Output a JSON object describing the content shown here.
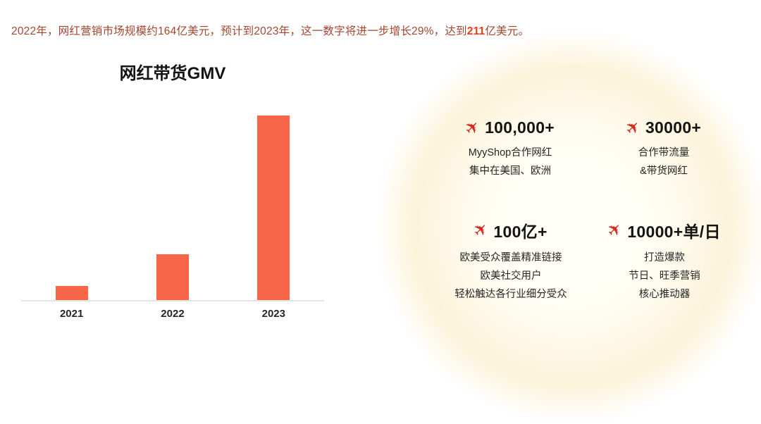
{
  "headline": {
    "prefix": "2022年，网红营销市场规模约164亿美元，预计到2023年，这一数字将进一步增长29%，达到",
    "highlight": "211",
    "suffix": "亿美元。"
  },
  "chart": {
    "title": "网红带货GMV",
    "chart_data": {
      "type": "bar",
      "title": "网红带货GMV",
      "categories": [
        "2021",
        "2022",
        "2023"
      ],
      "values": [
        20,
        65,
        262
      ],
      "xlabel": "",
      "ylabel": "",
      "ylim": [
        0,
        268
      ],
      "grid": false,
      "legend": false,
      "bar_color": "#F8664A"
    }
  },
  "stats": [
    {
      "icon": "airplane-icon",
      "value": "100,000+",
      "lines": [
        "MyyShop合作网红",
        "集中在美国、欧洲"
      ]
    },
    {
      "icon": "airplane-icon",
      "value": "30000+",
      "lines": [
        "合作带流量",
        "&带货网红"
      ]
    },
    {
      "icon": "airplane-icon",
      "value": "100亿+",
      "lines": [
        "欧美受众覆盖精准链接",
        "欧美社交用户",
        "轻松触达各行业细分受众"
      ]
    },
    {
      "icon": "airplane-icon",
      "value": "10000+单/日",
      "lines": [
        "打造爆款",
        "节日、旺季营销",
        "核心推动器"
      ]
    }
  ],
  "icons": {
    "airplane": "✈"
  },
  "colors": {
    "headline_text": "#A5452F",
    "headline_highlight": "#EE3911",
    "bar": "#F8664A",
    "plane_icon": "#D42A1E",
    "glow_edge": "#FBF3DA"
  }
}
